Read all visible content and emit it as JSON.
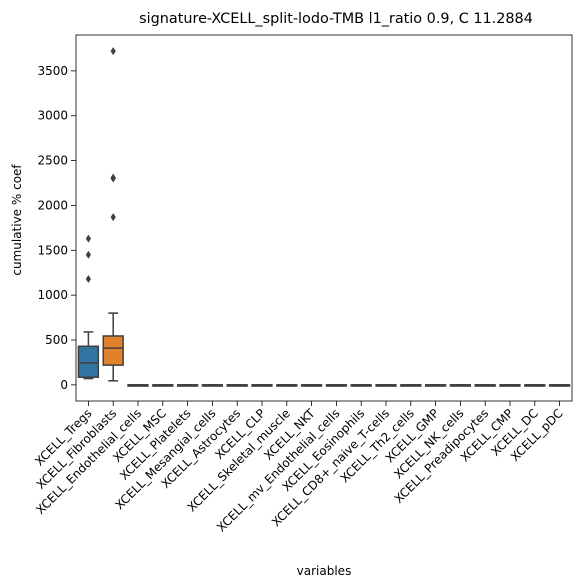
{
  "chart_data": {
    "type": "box",
    "title": "signature-XCELL_split-lodo-TMB l1_ratio 0.9, C 11.2884",
    "xlabel": "variables",
    "ylabel": "cumulative % coef",
    "ylim": [
      -180,
      3900
    ],
    "yticks": [
      0,
      500,
      1000,
      1500,
      2000,
      2500,
      3000,
      3500
    ],
    "ytick_labels": [
      "0",
      "500",
      "1000",
      "1500",
      "2000",
      "2500",
      "3000",
      "3500"
    ],
    "grid": false,
    "categories": [
      "XCELL_Tregs",
      "XCELL_Fibroblasts",
      "XCELL_Endothelial_cells",
      "XCELL_MSC",
      "XCELL_Platelets",
      "XCELL_Mesangial_cells",
      "XCELL_Astrocytes",
      "XCELL_CLP",
      "XCELL_Skeletal_muscle",
      "XCELL_NKT",
      "XCELL_mv_Endothelial_cells",
      "XCELL_Eosinophils",
      "XCELL_CD8+_naive_T-cells",
      "XCELL_Th2_cells",
      "XCELL_GMP",
      "XCELL_NK_cells",
      "XCELL_Preadipocytes",
      "XCELL_CMP",
      "XCELL_DC",
      "XCELL_pDC"
    ],
    "colors": [
      "#3274a1",
      "#e1812c",
      "#3a923a",
      "#c03d3e",
      "#9372b2",
      "#845b53",
      "#d684bd",
      "#7f7f7f",
      "#a9aa35",
      "#2ea8b9",
      "#3274a1",
      "#e1812c",
      "#3a923a",
      "#c03d3e",
      "#9372b2",
      "#845b53",
      "#d684bd",
      "#7f7f7f",
      "#a9aa35",
      "#2ea8b9"
    ],
    "boxes": [
      {
        "whislo": 70,
        "q1": 85,
        "med": 245,
        "q3": 430,
        "whishi": 590,
        "fliers": [
          1180,
          1450,
          1630
        ]
      },
      {
        "whislo": 45,
        "q1": 220,
        "med": 410,
        "q3": 545,
        "whishi": 800,
        "fliers": [
          1870,
          2300,
          2310,
          3720
        ]
      },
      {
        "whislo": 0,
        "q1": 0,
        "med": 0,
        "q3": 0,
        "whishi": 0,
        "fliers": []
      },
      {
        "whislo": 0,
        "q1": 0,
        "med": 0,
        "q3": 0,
        "whishi": 0,
        "fliers": []
      },
      {
        "whislo": 0,
        "q1": 0,
        "med": 0,
        "q3": 0,
        "whishi": 0,
        "fliers": []
      },
      {
        "whislo": 0,
        "q1": 0,
        "med": 0,
        "q3": 0,
        "whishi": 0,
        "fliers": []
      },
      {
        "whislo": 0,
        "q1": 0,
        "med": 0,
        "q3": 0,
        "whishi": 0,
        "fliers": []
      },
      {
        "whislo": 0,
        "q1": 0,
        "med": 0,
        "q3": 0,
        "whishi": 0,
        "fliers": []
      },
      {
        "whislo": 0,
        "q1": 0,
        "med": 0,
        "q3": 0,
        "whishi": 0,
        "fliers": []
      },
      {
        "whislo": 0,
        "q1": 0,
        "med": 0,
        "q3": 0,
        "whishi": 0,
        "fliers": []
      },
      {
        "whislo": 0,
        "q1": 0,
        "med": 0,
        "q3": 0,
        "whishi": 0,
        "fliers": []
      },
      {
        "whislo": 0,
        "q1": 0,
        "med": 0,
        "q3": 0,
        "whishi": 0,
        "fliers": []
      },
      {
        "whislo": 0,
        "q1": 0,
        "med": 0,
        "q3": 0,
        "whishi": 0,
        "fliers": []
      },
      {
        "whislo": 0,
        "q1": 0,
        "med": 0,
        "q3": 0,
        "whishi": 0,
        "fliers": []
      },
      {
        "whislo": 0,
        "q1": 0,
        "med": 0,
        "q3": 0,
        "whishi": 0,
        "fliers": []
      },
      {
        "whislo": 0,
        "q1": 0,
        "med": 0,
        "q3": 0,
        "whishi": 0,
        "fliers": []
      },
      {
        "whislo": 0,
        "q1": 0,
        "med": 0,
        "q3": 0,
        "whishi": 0,
        "fliers": []
      },
      {
        "whislo": 0,
        "q1": 0,
        "med": 0,
        "q3": 0,
        "whishi": 0,
        "fliers": []
      },
      {
        "whislo": 0,
        "q1": 0,
        "med": 0,
        "q3": 0,
        "whishi": 0,
        "fliers": []
      },
      {
        "whislo": 0,
        "q1": 0,
        "med": 0,
        "q3": 0,
        "whishi": 0,
        "fliers": []
      }
    ]
  }
}
